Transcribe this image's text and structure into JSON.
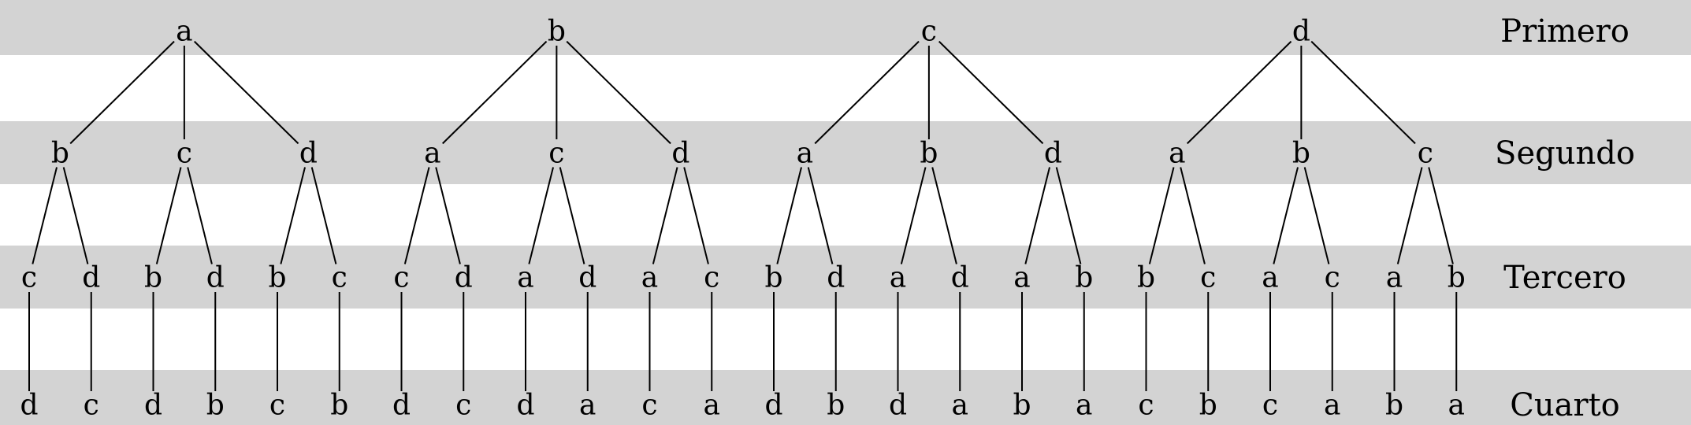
{
  "colors": {
    "band": "#d3d3d3",
    "background": "#ffffff",
    "line": "#000000"
  },
  "levels": [
    "Primero",
    "Segundo",
    "Tercero",
    "Cuarto"
  ],
  "trees": [
    {
      "label": "a",
      "children": [
        {
          "label": "b",
          "children": [
            {
              "label": "c",
              "children": [
                {
                  "label": "d"
                }
              ]
            },
            {
              "label": "d",
              "children": [
                {
                  "label": "c"
                }
              ]
            }
          ]
        },
        {
          "label": "c",
          "children": [
            {
              "label": "b",
              "children": [
                {
                  "label": "d"
                }
              ]
            },
            {
              "label": "d",
              "children": [
                {
                  "label": "b"
                }
              ]
            }
          ]
        },
        {
          "label": "d",
          "children": [
            {
              "label": "b",
              "children": [
                {
                  "label": "c"
                }
              ]
            },
            {
              "label": "c",
              "children": [
                {
                  "label": "b"
                }
              ]
            }
          ]
        }
      ]
    },
    {
      "label": "b",
      "children": [
        {
          "label": "a",
          "children": [
            {
              "label": "c",
              "children": [
                {
                  "label": "d"
                }
              ]
            },
            {
              "label": "d",
              "children": [
                {
                  "label": "c"
                }
              ]
            }
          ]
        },
        {
          "label": "c",
          "children": [
            {
              "label": "a",
              "children": [
                {
                  "label": "d"
                }
              ]
            },
            {
              "label": "d",
              "children": [
                {
                  "label": "a"
                }
              ]
            }
          ]
        },
        {
          "label": "d",
          "children": [
            {
              "label": "a",
              "children": [
                {
                  "label": "c"
                }
              ]
            },
            {
              "label": "c",
              "children": [
                {
                  "label": "a"
                }
              ]
            }
          ]
        }
      ]
    },
    {
      "label": "c",
      "children": [
        {
          "label": "a",
          "children": [
            {
              "label": "b",
              "children": [
                {
                  "label": "d"
                }
              ]
            },
            {
              "label": "d",
              "children": [
                {
                  "label": "b"
                }
              ]
            }
          ]
        },
        {
          "label": "b",
          "children": [
            {
              "label": "a",
              "children": [
                {
                  "label": "d"
                }
              ]
            },
            {
              "label": "d",
              "children": [
                {
                  "label": "a"
                }
              ]
            }
          ]
        },
        {
          "label": "d",
          "children": [
            {
              "label": "a",
              "children": [
                {
                  "label": "b"
                }
              ]
            },
            {
              "label": "b",
              "children": [
                {
                  "label": "a"
                }
              ]
            }
          ]
        }
      ]
    },
    {
      "label": "d",
      "children": [
        {
          "label": "a",
          "children": [
            {
              "label": "b",
              "children": [
                {
                  "label": "c"
                }
              ]
            },
            {
              "label": "c",
              "children": [
                {
                  "label": "b"
                }
              ]
            }
          ]
        },
        {
          "label": "b",
          "children": [
            {
              "label": "a",
              "children": [
                {
                  "label": "c"
                }
              ]
            },
            {
              "label": "c",
              "children": [
                {
                  "label": "a"
                }
              ]
            }
          ]
        },
        {
          "label": "c",
          "children": [
            {
              "label": "a",
              "children": [
                {
                  "label": "b"
                }
              ]
            },
            {
              "label": "b",
              "children": [
                {
                  "label": "a"
                }
              ]
            }
          ]
        }
      ]
    }
  ]
}
